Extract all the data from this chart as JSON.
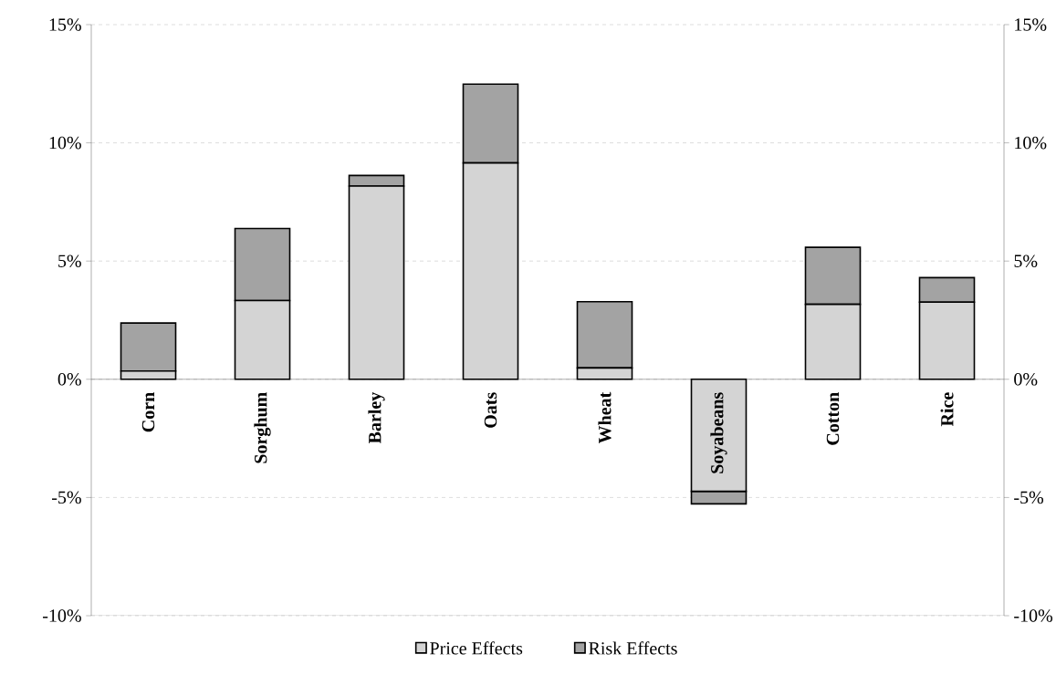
{
  "chart_data": {
    "type": "bar",
    "stacked": true,
    "categories": [
      "Corn",
      "Sorghum",
      "Barley",
      "Oats",
      "Wheat",
      "Soyabeans",
      "Cotton",
      "Rice"
    ],
    "series": [
      {
        "name": "Price Effects",
        "color": "#d4d4d4",
        "values": [
          0.35,
          3.33,
          8.17,
          9.15,
          0.48,
          -4.74,
          3.17,
          3.26
        ]
      },
      {
        "name": "Risk Effects",
        "color": "#a3a3a3",
        "values": [
          2.03,
          3.05,
          0.45,
          3.33,
          2.8,
          -0.53,
          2.41,
          1.04
        ]
      }
    ],
    "ylim": [
      -10,
      15
    ],
    "yticks": [
      {
        "value": -10,
        "label": "-10%"
      },
      {
        "value": -5,
        "label": "-5%"
      },
      {
        "value": 0,
        "label": "0%"
      },
      {
        "value": 5,
        "label": "5%"
      },
      {
        "value": 10,
        "label": "10%"
      },
      {
        "value": 15,
        "label": "15%"
      }
    ],
    "y2lim": [
      -10,
      15
    ],
    "y2ticks": [
      {
        "value": -10,
        "label": "-10%"
      },
      {
        "value": -5,
        "label": "-5%"
      },
      {
        "value": 0,
        "label": "0%"
      },
      {
        "value": 5,
        "label": "5%"
      },
      {
        "value": 10,
        "label": "10%"
      },
      {
        "value": 15,
        "label": "15%"
      }
    ],
    "grid": "y",
    "legend": "bottom"
  }
}
